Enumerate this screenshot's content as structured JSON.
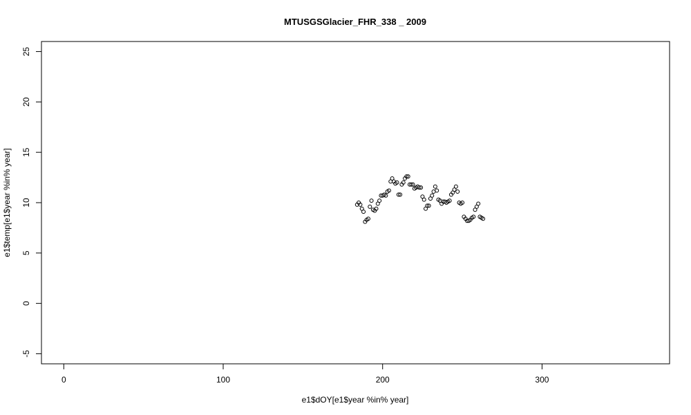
{
  "chart_data": {
    "type": "scatter",
    "title": "MTUSGSGlacier_FHR_338 _ 2009",
    "xlabel": "e1$dOY[e1$year %in% year]",
    "ylabel": "e1$temp[e1$year %in% year]",
    "xlim": [
      -14,
      380
    ],
    "ylim": [
      -6,
      26
    ],
    "x_ticks": [
      0,
      100,
      200,
      300
    ],
    "x_tick_labels": [
      "0",
      "100",
      "200",
      "300"
    ],
    "y_ticks": [
      -5,
      0,
      5,
      10,
      15,
      20,
      25
    ],
    "y_tick_labels": [
      "-5",
      "0",
      "5",
      "10",
      "15",
      "20",
      "25"
    ],
    "grid": false,
    "marker": "open-circle",
    "points": [
      [
        184,
        9.8
      ],
      [
        185,
        10.0
      ],
      [
        186,
        9.8
      ],
      [
        187,
        9.4
      ],
      [
        188,
        9.1
      ],
      [
        189,
        8.1
      ],
      [
        190,
        8.3
      ],
      [
        191,
        8.4
      ],
      [
        192,
        9.6
      ],
      [
        193,
        10.2
      ],
      [
        194,
        9.3
      ],
      [
        195,
        9.2
      ],
      [
        196,
        9.4
      ],
      [
        197,
        9.9
      ],
      [
        198,
        10.2
      ],
      [
        199,
        10.7
      ],
      [
        200,
        10.7
      ],
      [
        201,
        10.8
      ],
      [
        202,
        10.7
      ],
      [
        203,
        11.1
      ],
      [
        204,
        11.2
      ],
      [
        205,
        12.1
      ],
      [
        206,
        12.4
      ],
      [
        207,
        12.1
      ],
      [
        208,
        11.9
      ],
      [
        209,
        12.0
      ],
      [
        210,
        10.8
      ],
      [
        211,
        10.8
      ],
      [
        212,
        11.8
      ],
      [
        213,
        12.0
      ],
      [
        214,
        12.4
      ],
      [
        215,
        12.6
      ],
      [
        216,
        12.6
      ],
      [
        217,
        11.8
      ],
      [
        218,
        11.8
      ],
      [
        219,
        11.8
      ],
      [
        220,
        11.4
      ],
      [
        221,
        11.5
      ],
      [
        222,
        11.6
      ],
      [
        223,
        11.5
      ],
      [
        224,
        11.5
      ],
      [
        225,
        10.6
      ],
      [
        226,
        10.3
      ],
      [
        227,
        9.4
      ],
      [
        228,
        9.7
      ],
      [
        229,
        9.7
      ],
      [
        230,
        10.4
      ],
      [
        231,
        10.7
      ],
      [
        232,
        11.1
      ],
      [
        233,
        11.6
      ],
      [
        234,
        11.2
      ],
      [
        235,
        10.3
      ],
      [
        236,
        10.2
      ],
      [
        237,
        9.9
      ],
      [
        238,
        10.1
      ],
      [
        239,
        10.1
      ],
      [
        240,
        10.0
      ],
      [
        241,
        10.1
      ],
      [
        242,
        10.2
      ],
      [
        243,
        10.8
      ],
      [
        244,
        11.0
      ],
      [
        245,
        11.3
      ],
      [
        246,
        11.6
      ],
      [
        247,
        11.1
      ],
      [
        248,
        10.0
      ],
      [
        249,
        9.9
      ],
      [
        250,
        10.0
      ],
      [
        251,
        8.6
      ],
      [
        252,
        8.4
      ],
      [
        253,
        8.2
      ],
      [
        254,
        8.2
      ],
      [
        255,
        8.3
      ],
      [
        256,
        8.5
      ],
      [
        257,
        8.6
      ],
      [
        258,
        9.3
      ],
      [
        259,
        9.6
      ],
      [
        260,
        9.9
      ],
      [
        261,
        8.6
      ],
      [
        262,
        8.5
      ],
      [
        263,
        8.4
      ]
    ]
  }
}
